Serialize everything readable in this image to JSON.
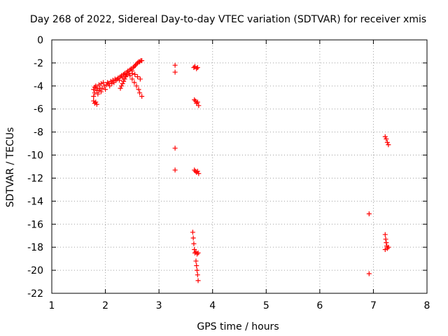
{
  "chart_data": {
    "type": "scatter",
    "title": "Day 268 of 2022, Sidereal Day-to-day VTEC variation (SDTVAR) for receiver xmis",
    "xlabel": "GPS time / hours",
    "ylabel": "SDTVAR / TECUs",
    "xlim": [
      1,
      8
    ],
    "ylim": [
      -22,
      0
    ],
    "xticks": [
      "1",
      "2",
      "3",
      "4",
      "5",
      "6",
      "7",
      "8"
    ],
    "yticks": [
      "0",
      "-2",
      "-4",
      "-6",
      "-8",
      "-10",
      "-12",
      "-14",
      "-16",
      "-18",
      "-20",
      "-22"
    ],
    "grid": true,
    "marker": "+",
    "color": "#ff0000",
    "series": [
      {
        "name": "SDTVAR",
        "points": [
          [
            1.78,
            -5.3
          ],
          [
            1.8,
            -5.5
          ],
          [
            1.82,
            -5.4
          ],
          [
            1.84,
            -5.6
          ],
          [
            1.78,
            -4.9
          ],
          [
            1.8,
            -4.6
          ],
          [
            1.78,
            -4.3
          ],
          [
            1.8,
            -4.1
          ],
          [
            1.82,
            -4.0
          ],
          [
            1.84,
            -4.4
          ],
          [
            1.86,
            -4.7
          ],
          [
            1.88,
            -4.4
          ],
          [
            1.85,
            -4.2
          ],
          [
            1.88,
            -3.9
          ],
          [
            1.9,
            -4.2
          ],
          [
            1.92,
            -4.5
          ],
          [
            1.94,
            -4.2
          ],
          [
            1.92,
            -3.8
          ],
          [
            1.96,
            -3.7
          ],
          [
            1.98,
            -4.0
          ],
          [
            2.0,
            -4.3
          ],
          [
            2.02,
            -3.9
          ],
          [
            2.04,
            -3.7
          ],
          [
            2.06,
            -3.8
          ],
          [
            2.08,
            -4.0
          ],
          [
            2.1,
            -3.6
          ],
          [
            2.12,
            -3.8
          ],
          [
            2.14,
            -3.5
          ],
          [
            2.16,
            -3.7
          ],
          [
            2.18,
            -3.4
          ],
          [
            2.2,
            -3.5
          ],
          [
            2.22,
            -3.4
          ],
          [
            2.24,
            -3.3
          ],
          [
            2.26,
            -3.5
          ],
          [
            2.28,
            -3.2
          ],
          [
            2.3,
            -3.1
          ],
          [
            2.32,
            -3.3
          ],
          [
            2.34,
            -3.0
          ],
          [
            2.36,
            -2.9
          ],
          [
            2.38,
            -3.1
          ],
          [
            2.4,
            -2.8
          ],
          [
            2.42,
            -2.7
          ],
          [
            2.44,
            -2.9
          ],
          [
            2.46,
            -2.6
          ],
          [
            2.48,
            -2.5
          ],
          [
            2.5,
            -2.7
          ],
          [
            2.52,
            -2.4
          ],
          [
            2.54,
            -2.3
          ],
          [
            2.56,
            -2.2
          ],
          [
            2.58,
            -2.1
          ],
          [
            2.6,
            -2.0
          ],
          [
            2.62,
            -1.9
          ],
          [
            2.64,
            -1.9
          ],
          [
            2.66,
            -1.8
          ],
          [
            2.68,
            -1.8
          ],
          [
            2.28,
            -4.2
          ],
          [
            2.3,
            -4.0
          ],
          [
            2.32,
            -3.8
          ],
          [
            2.34,
            -3.6
          ],
          [
            2.36,
            -3.4
          ],
          [
            2.38,
            -3.2
          ],
          [
            2.4,
            -3.0
          ],
          [
            2.46,
            -3.1
          ],
          [
            2.5,
            -3.4
          ],
          [
            2.54,
            -3.7
          ],
          [
            2.58,
            -4.0
          ],
          [
            2.62,
            -4.3
          ],
          [
            2.64,
            -4.6
          ],
          [
            2.68,
            -4.9
          ],
          [
            2.5,
            -2.9
          ],
          [
            2.55,
            -3.0
          ],
          [
            2.6,
            -3.2
          ],
          [
            2.65,
            -3.4
          ],
          [
            3.3,
            -2.2
          ],
          [
            3.3,
            -2.8
          ],
          [
            3.3,
            -9.4
          ],
          [
            3.3,
            -11.3
          ],
          [
            3.65,
            -2.4
          ],
          [
            3.67,
            -2.3
          ],
          [
            3.7,
            -2.5
          ],
          [
            3.72,
            -2.4
          ],
          [
            3.66,
            -5.2
          ],
          [
            3.68,
            -5.3
          ],
          [
            3.7,
            -5.5
          ],
          [
            3.72,
            -5.4
          ],
          [
            3.74,
            -5.7
          ],
          [
            3.66,
            -11.3
          ],
          [
            3.68,
            -11.4
          ],
          [
            3.7,
            -11.5
          ],
          [
            3.72,
            -11.4
          ],
          [
            3.74,
            -11.6
          ],
          [
            3.63,
            -16.7
          ],
          [
            3.64,
            -17.2
          ],
          [
            3.65,
            -17.7
          ],
          [
            3.66,
            -18.2
          ],
          [
            3.67,
            -18.5
          ],
          [
            3.69,
            -18.4
          ],
          [
            3.71,
            -18.6
          ],
          [
            3.73,
            -18.5
          ],
          [
            3.69,
            -19.2
          ],
          [
            3.7,
            -19.6
          ],
          [
            3.71,
            -20.0
          ],
          [
            3.72,
            -20.4
          ],
          [
            3.73,
            -20.9
          ],
          [
            6.92,
            -15.1
          ],
          [
            6.92,
            -20.3
          ],
          [
            7.22,
            -8.4
          ],
          [
            7.24,
            -8.6
          ],
          [
            7.26,
            -8.9
          ],
          [
            7.28,
            -9.1
          ],
          [
            7.22,
            -16.9
          ],
          [
            7.23,
            -17.3
          ],
          [
            7.24,
            -17.6
          ],
          [
            7.25,
            -17.9
          ],
          [
            7.22,
            -18.2
          ],
          [
            7.26,
            -18.1
          ],
          [
            7.28,
            -18.0
          ]
        ]
      }
    ]
  }
}
